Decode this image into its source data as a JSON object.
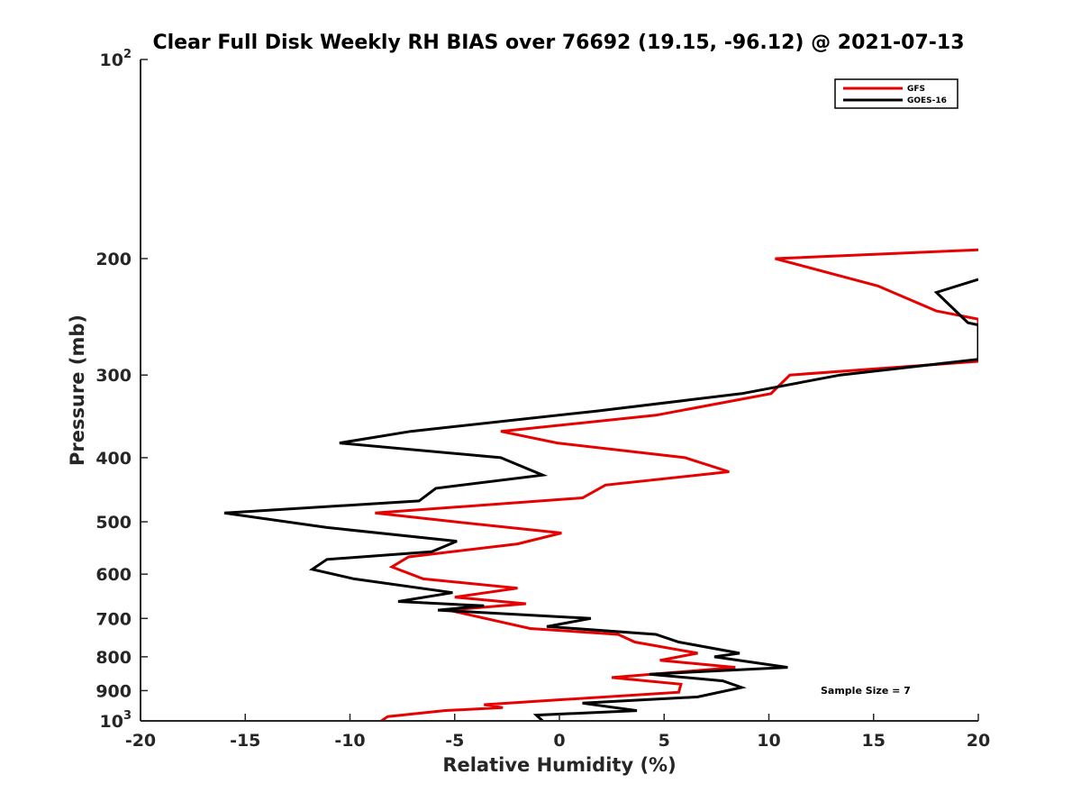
{
  "chart_data": {
    "type": "line",
    "title": "Clear Full Disk Weekly RH BIAS over 76692 (19.15, -96.12) @ 2021-07-13",
    "xlabel": "Relative Humidity (%)",
    "ylabel": "Pressure (mb)",
    "xlim": [
      -20,
      20
    ],
    "ylim": [
      100,
      1000
    ],
    "yscale": "log",
    "ydirection": "reverse",
    "xticks": [
      -20,
      -15,
      -10,
      -5,
      0,
      5,
      10,
      15,
      20
    ],
    "yticks": [
      {
        "value": 100,
        "base": "10",
        "exp": "2"
      },
      {
        "value": 200,
        "label": "200"
      },
      {
        "value": 300,
        "label": "300"
      },
      {
        "value": 400,
        "label": "400"
      },
      {
        "value": 500,
        "label": "500"
      },
      {
        "value": 600,
        "label": "600"
      },
      {
        "value": 700,
        "label": "700"
      },
      {
        "value": 800,
        "label": "800"
      },
      {
        "value": 900,
        "label": "900"
      },
      {
        "value": 1000,
        "base": "10",
        "exp": "3"
      }
    ],
    "legend": {
      "location": "top-right",
      "entries": [
        "GFS",
        "GOES-16"
      ]
    },
    "annotation": "Sample Size = 7",
    "series": [
      {
        "name": "GFS",
        "color": "#e60000",
        "points": [
          [
            20,
            194
          ],
          [
            10.3,
            200
          ],
          [
            15.2,
            220
          ],
          [
            18,
            240
          ],
          [
            20,
            247
          ],
          [
            20,
            286
          ],
          [
            11,
            300
          ],
          [
            10.1,
            320
          ],
          [
            4.6,
            345
          ],
          [
            -2.8,
            365
          ],
          [
            -0.1,
            380
          ],
          [
            6,
            400
          ],
          [
            8.1,
            420
          ],
          [
            2.2,
            440
          ],
          [
            1.1,
            460
          ],
          [
            -8.8,
            485
          ],
          [
            -5,
            500
          ],
          [
            0.1,
            520
          ],
          [
            -2,
            540
          ],
          [
            -7.2,
            565
          ],
          [
            -8,
            585
          ],
          [
            -6.5,
            610
          ],
          [
            -2,
            630
          ],
          [
            -5,
            650
          ],
          [
            -1.6,
            665
          ],
          [
            -5.3,
            680
          ],
          [
            -1.4,
            725
          ],
          [
            2.8,
            740
          ],
          [
            3.6,
            760
          ],
          [
            6.6,
            790
          ],
          [
            4.8,
            810
          ],
          [
            8.4,
            830
          ],
          [
            2.5,
            860
          ],
          [
            5.8,
            880
          ],
          [
            5.7,
            905
          ],
          [
            -0.2,
            930
          ],
          [
            -3.6,
            945
          ],
          [
            -2.7,
            955
          ],
          [
            -5.5,
            965
          ],
          [
            -8.2,
            985
          ],
          [
            -8.5,
            1000
          ]
        ]
      },
      {
        "name": "GOES-16",
        "color": "#000000",
        "points": [
          [
            20,
            215
          ],
          [
            18,
            225
          ],
          [
            19.5,
            250
          ],
          [
            20,
            252
          ],
          [
            20,
            284
          ],
          [
            13.4,
            300
          ],
          [
            8.7,
            320
          ],
          [
            1.8,
            340
          ],
          [
            -7.1,
            365
          ],
          [
            -10.5,
            380
          ],
          [
            -2.8,
            400
          ],
          [
            -0.8,
            425
          ],
          [
            -5.9,
            445
          ],
          [
            -6.7,
            465
          ],
          [
            -16,
            485
          ],
          [
            -11.1,
            510
          ],
          [
            -4.9,
            535
          ],
          [
            -6.1,
            555
          ],
          [
            -11.1,
            570
          ],
          [
            -11.8,
            590
          ],
          [
            -9.8,
            610
          ],
          [
            -5.1,
            640
          ],
          [
            -7.7,
            660
          ],
          [
            -3.6,
            670
          ],
          [
            -5.8,
            680
          ],
          [
            1.5,
            700
          ],
          [
            -0.6,
            720
          ],
          [
            4.6,
            740
          ],
          [
            5.7,
            760
          ],
          [
            8.6,
            790
          ],
          [
            7.4,
            800
          ],
          [
            10.9,
            830
          ],
          [
            4.3,
            850
          ],
          [
            7.8,
            870
          ],
          [
            8.7,
            890
          ],
          [
            6.6,
            920
          ],
          [
            1.1,
            940
          ],
          [
            3.7,
            965
          ],
          [
            -1.1,
            980
          ],
          [
            -0.8,
            1000
          ]
        ]
      }
    ]
  }
}
